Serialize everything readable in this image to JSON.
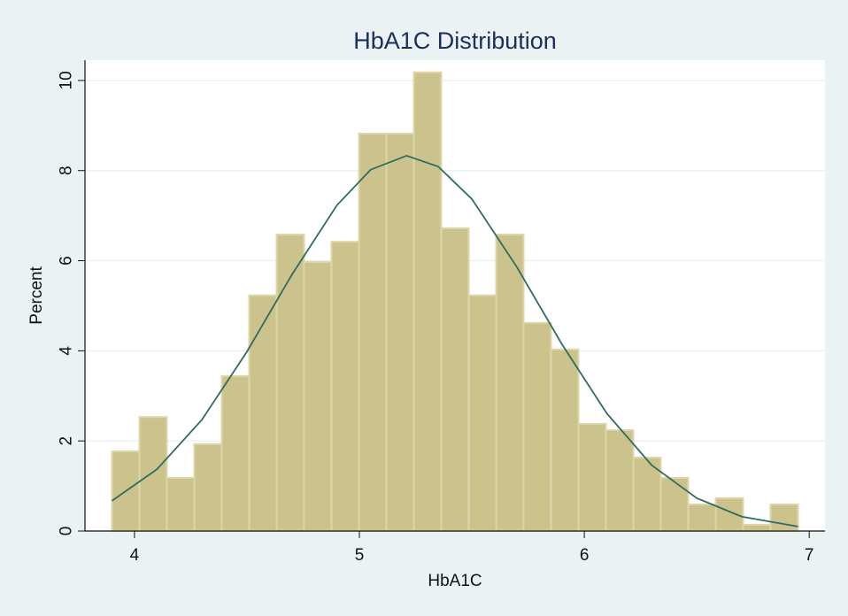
{
  "chart_data": {
    "type": "histogram",
    "title": "HbA1C Distribution",
    "x_label": "HbA1C",
    "y_label": "Percent",
    "bins": [
      3.9,
      4.022,
      4.144,
      4.266,
      4.388,
      4.51,
      4.632,
      4.754,
      4.876,
      4.998,
      5.12,
      5.242,
      5.364,
      5.486,
      5.608,
      5.73,
      5.852,
      5.974,
      6.096,
      6.218,
      6.34,
      6.462,
      6.584,
      6.706,
      6.828,
      6.95
    ],
    "values": [
      1.77,
      2.53,
      1.18,
      1.93,
      3.44,
      5.23,
      6.58,
      5.97,
      6.42,
      8.82,
      8.82,
      10.18,
      6.72,
      5.23,
      6.58,
      4.62,
      4.03,
      2.38,
      2.24,
      1.63,
      1.18,
      0.59,
      0.73,
      0.14,
      0.59
    ],
    "color": "#cbc38b",
    "curve": {
      "type": "line",
      "color": "#2f6b63",
      "x": [
        3.9,
        4.1,
        4.3,
        4.5,
        4.7,
        4.9,
        5.05,
        5.21,
        5.35,
        5.5,
        5.7,
        5.9,
        6.1,
        6.3,
        6.5,
        6.7,
        6.95
      ],
      "values": [
        0.67,
        1.37,
        2.47,
        3.98,
        5.69,
        7.23,
        8.02,
        8.33,
        8.09,
        7.37,
        5.86,
        4.15,
        2.61,
        1.46,
        0.73,
        0.32,
        0.1
      ]
    },
    "xlim": [
      3.78,
      7.07
    ],
    "ylim": [
      0,
      10.45
    ],
    "xticks": [
      4,
      5,
      6,
      7
    ],
    "yticks": [
      0,
      2,
      4,
      6,
      8,
      10
    ],
    "grid": true
  }
}
